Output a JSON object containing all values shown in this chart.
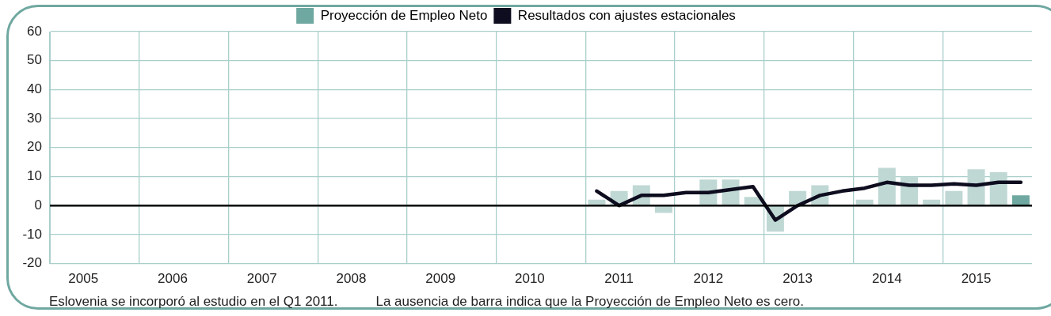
{
  "chart_data": {
    "type": "bar",
    "categories": [
      null,
      "2005",
      null,
      null,
      null,
      "2006",
      null,
      null,
      null,
      "2007",
      null,
      null,
      null,
      "2008",
      null,
      null,
      null,
      "2009",
      null,
      null,
      null,
      "2010",
      null,
      null,
      null,
      "2011",
      null,
      null,
      null,
      "2012",
      null,
      null,
      null,
      "2013",
      null,
      null,
      null,
      "2014",
      null,
      null,
      null,
      "2015",
      null,
      null
    ],
    "series": [
      {
        "name": "Proyección de Empleo Neto",
        "color": "#6fa8a0",
        "colors": [
          "#bfd8d4",
          "#bfd8d4",
          "#bfd8d4",
          "#bfd8d4",
          "#bfd8d4",
          "#bfd8d4",
          "#bfd8d4",
          "#bfd8d4",
          "#bfd8d4",
          "#bfd8d4",
          "#bfd8d4",
          "#bfd8d4",
          "#bfd8d4",
          "#bfd8d4",
          "#bfd8d4",
          "#bfd8d4",
          "#bfd8d4",
          "#bfd8d4",
          "#bfd8d4",
          "#bfd8d4",
          "#bfd8d4",
          "#bfd8d4",
          "#bfd8d4",
          "#bfd8d4",
          "#bfd8d4",
          "#bfd8d4",
          "#bfd8d4",
          "#bfd8d4",
          "#bfd8d4",
          "#bfd8d4",
          "#bfd8d4",
          "#bfd8d4",
          "#bfd8d4",
          "#bfd8d4",
          "#bfd8d4",
          "#bfd8d4",
          "#bfd8d4",
          "#bfd8d4",
          "#bfd8d4",
          "#bfd8d4",
          "#bfd8d4",
          "#bfd8d4",
          "#bfd8d4",
          "#6fa8a0"
        ],
        "values": [
          null,
          null,
          null,
          null,
          null,
          null,
          null,
          null,
          null,
          null,
          null,
          null,
          null,
          null,
          null,
          null,
          null,
          null,
          null,
          null,
          null,
          null,
          null,
          null,
          2,
          5,
          7,
          -2.5,
          0,
          9,
          9,
          3,
          -9,
          5,
          7,
          0,
          2,
          13,
          10,
          2,
          5,
          12.5,
          11.5,
          3.5
        ]
      },
      {
        "name": "Resultados con ajustes estacionales",
        "type": "line",
        "color": "#0d0d1f",
        "values": [
          null,
          null,
          null,
          null,
          null,
          null,
          null,
          null,
          null,
          null,
          null,
          null,
          null,
          null,
          null,
          null,
          null,
          null,
          null,
          null,
          null,
          null,
          null,
          null,
          5,
          0,
          3.5,
          3.5,
          4.5,
          4.5,
          5.5,
          6.5,
          -5,
          0,
          3.5,
          5,
          6,
          8,
          7,
          7,
          7.5,
          7,
          8,
          8
        ]
      }
    ],
    "ylim": [
      -20,
      60
    ],
    "yticks": [
      -20,
      -10,
      0,
      10,
      20,
      30,
      40,
      50,
      60
    ],
    "grid": true,
    "legend": "top",
    "ref_lines": [
      {
        "axis": "y",
        "value": 0,
        "color": "#000000"
      }
    ],
    "annotations": [
      "Eslovenia se incorporó al estudio en el Q1 2011.",
      "La ausencia de barra indica que la Proyección de Empleo Neto es cero."
    ]
  }
}
